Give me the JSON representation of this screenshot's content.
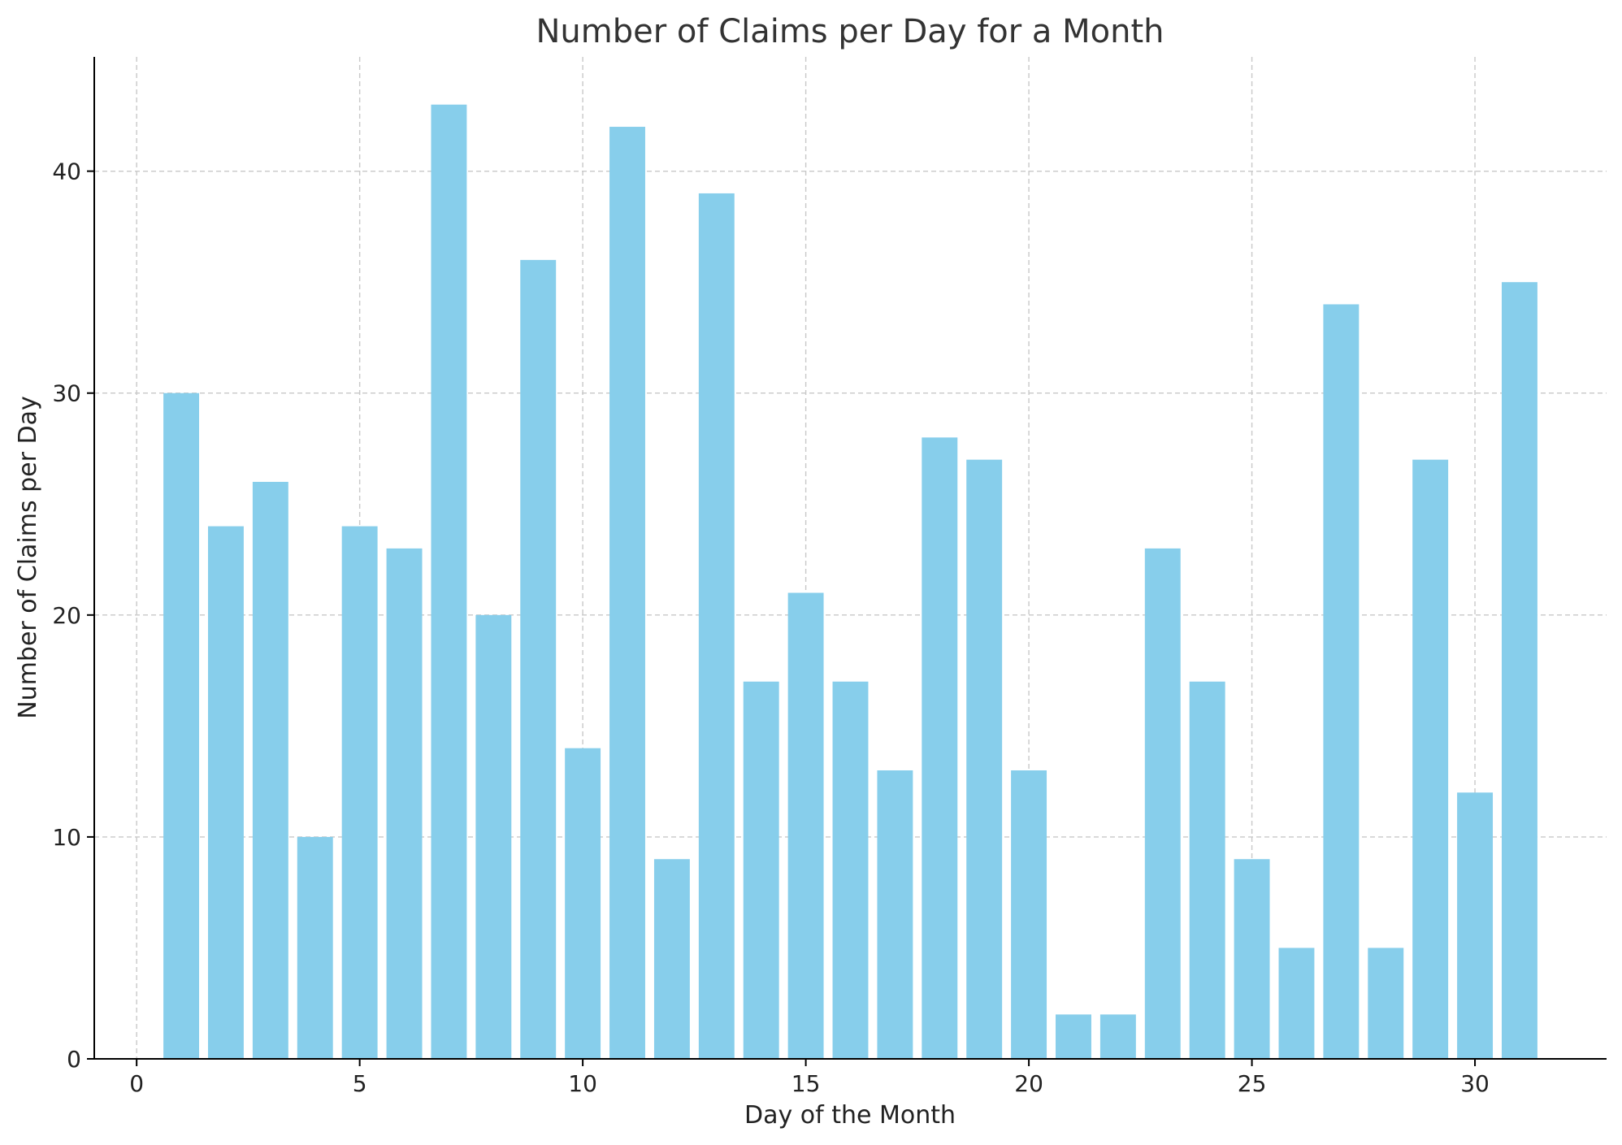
{
  "chart_data": {
    "type": "bar",
    "title": "Number of Claims per Day for a Month",
    "xlabel": "Day of the Month",
    "ylabel": "Number of Claims per Day",
    "x": [
      1,
      2,
      3,
      4,
      5,
      6,
      7,
      8,
      9,
      10,
      11,
      12,
      13,
      14,
      15,
      16,
      17,
      18,
      19,
      20,
      21,
      22,
      23,
      24,
      25,
      26,
      27,
      28,
      29,
      30,
      31
    ],
    "values": [
      30,
      24,
      26,
      10,
      24,
      23,
      43,
      20,
      36,
      14,
      42,
      9,
      39,
      17,
      21,
      17,
      13,
      28,
      27,
      13,
      2,
      2,
      23,
      17,
      9,
      5,
      34,
      5,
      27,
      12,
      35
    ],
    "xlim": [
      -0.95,
      32.95
    ],
    "ylim": [
      0,
      45.15
    ],
    "xticks": [
      0,
      5,
      10,
      15,
      20,
      25,
      30
    ],
    "yticks": [
      0,
      10,
      20,
      30,
      40
    ],
    "grid": true,
    "bar_color": "#87ceeb"
  }
}
